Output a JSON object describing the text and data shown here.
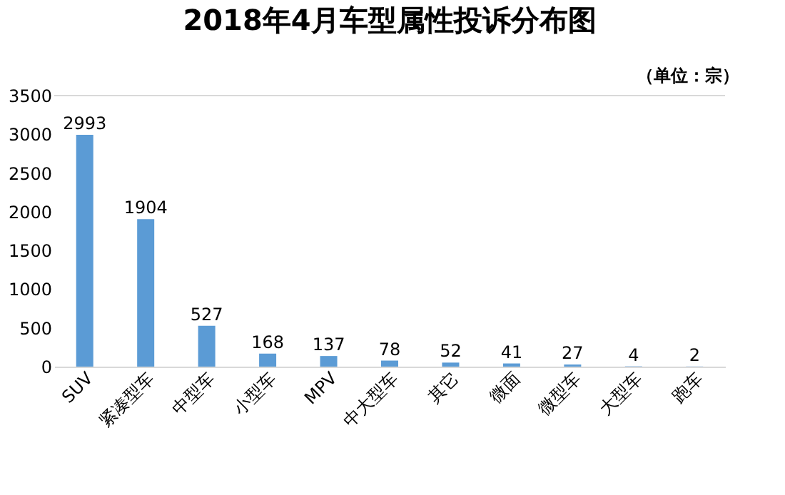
{
  "chart_data": {
    "type": "bar",
    "title": "2018年4月车型属性投诉分布图",
    "annotations": [
      "（单位：宗）"
    ],
    "categories": [
      "SUV",
      "紧凑型车",
      "中型车",
      "小型车",
      "MPV",
      "中大型车",
      "其它",
      "微面",
      "微型车",
      "大型车",
      "跑车"
    ],
    "values": [
      2993,
      1904,
      527,
      168,
      137,
      78,
      52,
      41,
      27,
      4,
      2
    ],
    "color": "#5b9bd5",
    "ylim": [
      0,
      3500
    ],
    "yticks": [
      0,
      500,
      1000,
      1500,
      2000,
      2500,
      3000,
      3500
    ],
    "grid": false,
    "data_labels": true
  }
}
